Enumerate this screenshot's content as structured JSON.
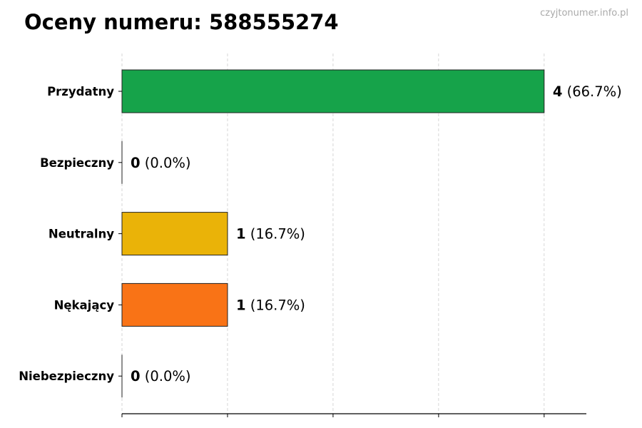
{
  "watermark": "czyjtonumer.info.pl",
  "chart_data": {
    "type": "bar",
    "orientation": "horizontal",
    "title": "Oceny numeru: 588555274",
    "xlabel": "",
    "ylabel": "",
    "categories": [
      "Przydatny",
      "Bezpieczny",
      "Neutralny",
      "Nękający",
      "Niebezpieczny"
    ],
    "values": [
      4,
      0,
      1,
      1,
      0
    ],
    "value_labels": [
      "4",
      "0",
      "1",
      "1",
      "0"
    ],
    "percent_labels": [
      "(66.7%)",
      "(0.0%)",
      "(16.7%)",
      "(16.7%)",
      "(0.0%)"
    ],
    "colors": [
      "#16a34a",
      "#2563eb",
      "#eab308",
      "#f97316",
      "#dc2626"
    ],
    "xlim": [
      0,
      4.4
    ],
    "xticks": [
      0,
      1,
      2,
      3,
      4
    ],
    "grid": "x-dashed",
    "legend": "none"
  }
}
